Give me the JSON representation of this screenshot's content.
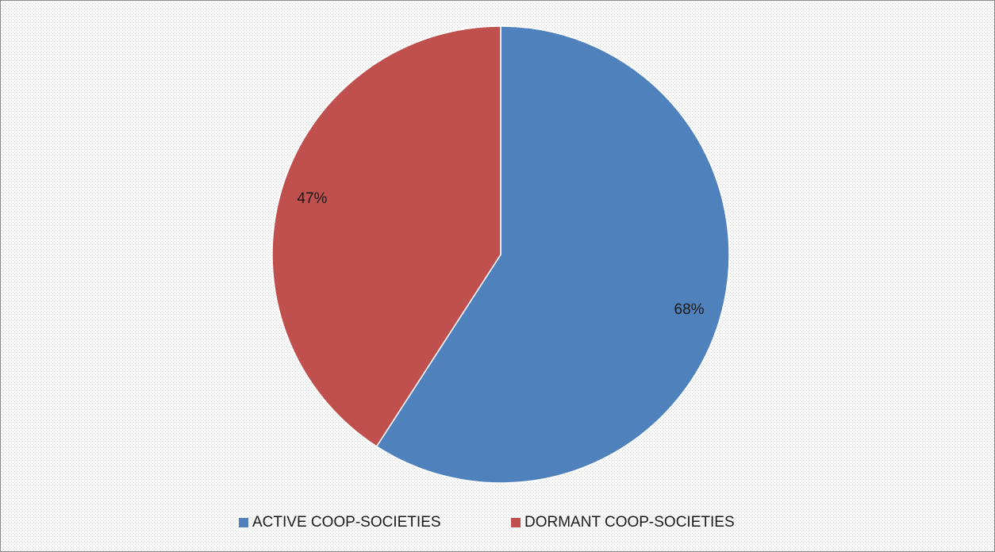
{
  "chart_data": {
    "type": "pie",
    "categories": [
      "ACTIVE COOP-SOCIETIES",
      "DORMANT COOP-SOCIETIES"
    ],
    "values": [
      68,
      47
    ],
    "value_labels": [
      "68%",
      "47%"
    ],
    "colors": [
      "#4f81bd",
      "#c0504d"
    ],
    "legend": "bottom"
  }
}
